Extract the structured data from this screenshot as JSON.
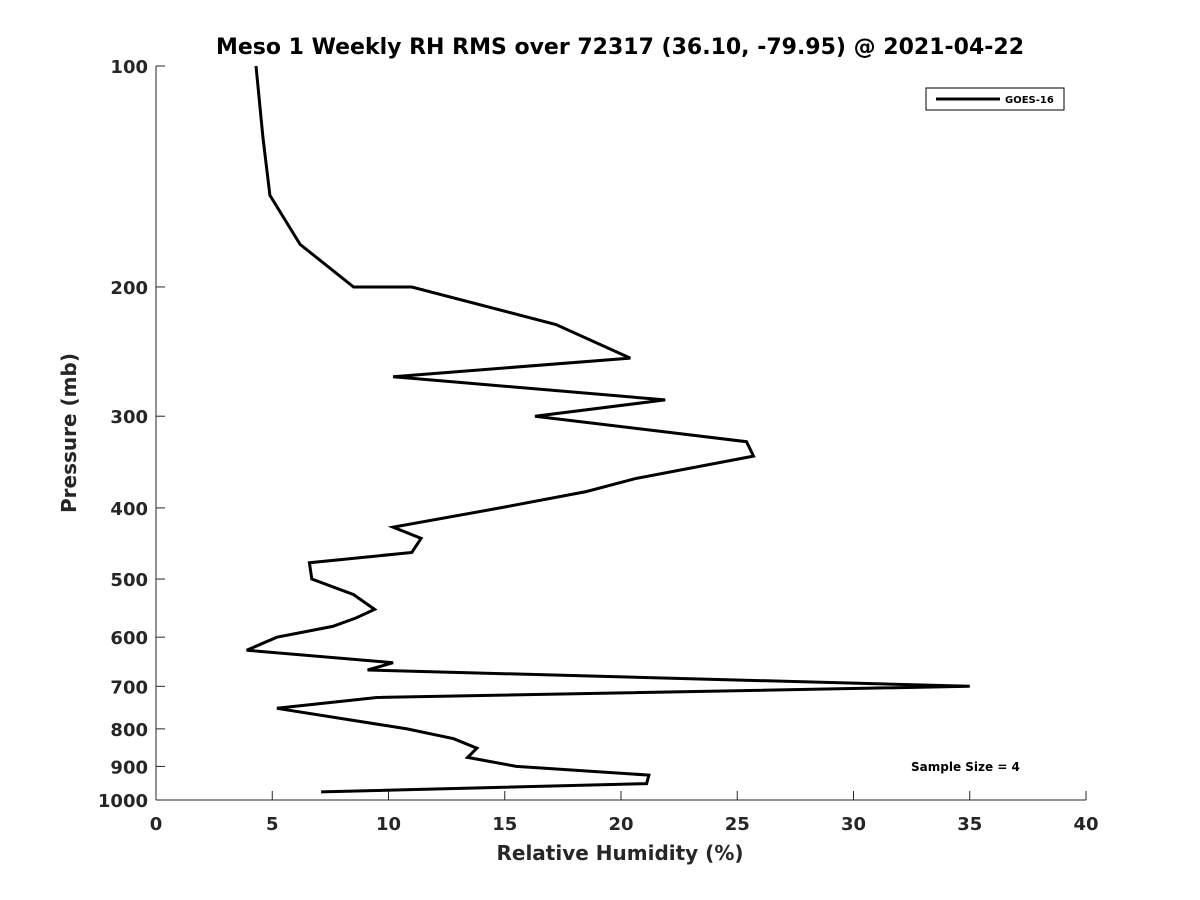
{
  "chart_data": {
    "type": "line",
    "title": "Meso 1 Weekly RH RMS over 72317 (36.10, -79.95) @ 2021-04-22",
    "xlabel": "Relative Humidity (%)",
    "ylabel": "Pressure (mb)",
    "xlim": [
      0,
      40
    ],
    "ylim": [
      100,
      1000
    ],
    "y_scale": "log",
    "y_reversed": true,
    "grid": false,
    "legend_position": "top-right",
    "x_ticks": [
      "0",
      "5",
      "10",
      "15",
      "20",
      "25",
      "30",
      "35",
      "40"
    ],
    "y_ticks": [
      "100",
      "200",
      "300",
      "400",
      "500",
      "600",
      "700",
      "800",
      "900",
      "1000"
    ],
    "series": [
      {
        "name": "GOES-16",
        "color": "#000000",
        "points": [
          {
            "x": 4.3,
            "y": 100
          },
          {
            "x": 4.6,
            "y": 125
          },
          {
            "x": 4.9,
            "y": 150
          },
          {
            "x": 6.2,
            "y": 175
          },
          {
            "x": 8.5,
            "y": 200
          },
          {
            "x": 11.0,
            "y": 200
          },
          {
            "x": 17.2,
            "y": 225
          },
          {
            "x": 20.4,
            "y": 250
          },
          {
            "x": 10.2,
            "y": 265
          },
          {
            "x": 21.9,
            "y": 285
          },
          {
            "x": 16.3,
            "y": 300
          },
          {
            "x": 25.4,
            "y": 325
          },
          {
            "x": 25.7,
            "y": 340
          },
          {
            "x": 20.6,
            "y": 365
          },
          {
            "x": 18.5,
            "y": 380
          },
          {
            "x": 14.8,
            "y": 400
          },
          {
            "x": 10.2,
            "y": 425
          },
          {
            "x": 11.4,
            "y": 440
          },
          {
            "x": 11.0,
            "y": 460
          },
          {
            "x": 6.6,
            "y": 475
          },
          {
            "x": 6.7,
            "y": 500
          },
          {
            "x": 8.5,
            "y": 525
          },
          {
            "x": 9.4,
            "y": 550
          },
          {
            "x": 8.6,
            "y": 565
          },
          {
            "x": 7.6,
            "y": 580
          },
          {
            "x": 5.2,
            "y": 600
          },
          {
            "x": 3.9,
            "y": 625
          },
          {
            "x": 10.2,
            "y": 650
          },
          {
            "x": 9.1,
            "y": 665
          },
          {
            "x": 35.0,
            "y": 700
          },
          {
            "x": 9.5,
            "y": 725
          },
          {
            "x": 5.2,
            "y": 750
          },
          {
            "x": 10.8,
            "y": 800
          },
          {
            "x": 12.8,
            "y": 825
          },
          {
            "x": 13.8,
            "y": 850
          },
          {
            "x": 13.4,
            "y": 875
          },
          {
            "x": 15.5,
            "y": 900
          },
          {
            "x": 21.2,
            "y": 925
          },
          {
            "x": 21.1,
            "y": 950
          },
          {
            "x": 7.1,
            "y": 975
          }
        ]
      }
    ],
    "annotations": [
      "Sample Size = 4"
    ]
  }
}
